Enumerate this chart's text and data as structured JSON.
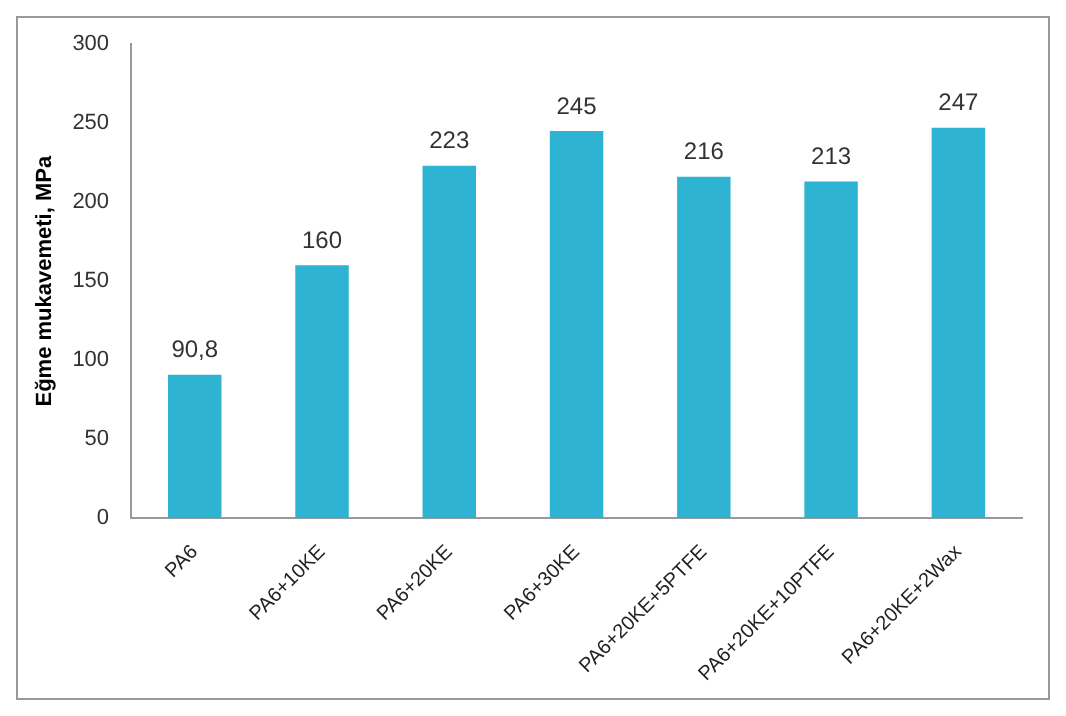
{
  "chart_data": {
    "type": "bar",
    "ylabel": "Eğme mukavemeti, MPa",
    "categories": [
      "PA6",
      "PA6+10KE",
      "PA6+20KE",
      "PA6+30KE",
      "PA6+20KE+5PTFE",
      "PA6+20KE+10PTFE",
      "PA6+20KE+2Wax"
    ],
    "values": [
      90.8,
      160,
      223,
      245,
      216,
      213,
      247
    ],
    "value_labels": [
      "90,8",
      "160",
      "223",
      "245",
      "216",
      "213",
      "247"
    ],
    "color": "#2fb3d2",
    "ylim": [
      0,
      300
    ],
    "yticks": [
      0,
      50,
      100,
      150,
      200,
      250,
      300
    ],
    "grid": false
  }
}
